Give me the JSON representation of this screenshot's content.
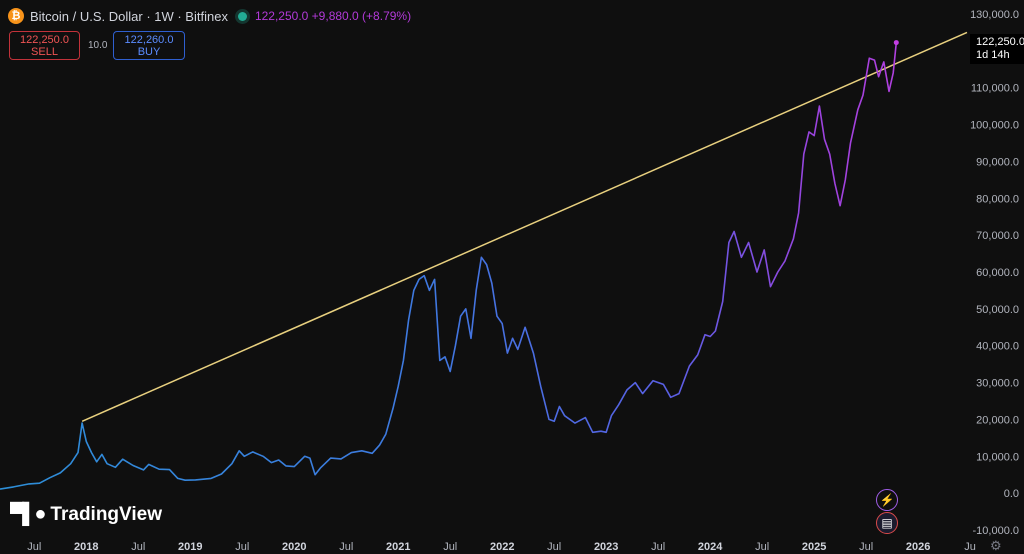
{
  "header": {
    "symbol_icon": "bitcoin-icon",
    "title": "Bitcoin / U.S. Dollar · 1W · Bitfinex",
    "price_readout": "122,250.0 +9,880.0 (+8.79%)"
  },
  "trade": {
    "sell_price": "122,250.0",
    "sell_label": "SELL",
    "spread": "10.0",
    "buy_price": "122,260.0",
    "buy_label": "BUY"
  },
  "branding": {
    "logo_text": "TradingView"
  },
  "price_label": {
    "value": "122,250.0",
    "countdown": "1d 14h"
  },
  "colors": {
    "background": "#0f0f0f",
    "trendline": "#e8d07f",
    "price_tag": "#b33ad9",
    "sell": "#c2323a",
    "buy": "#2f5fd0"
  },
  "chart_data": {
    "type": "line",
    "title": "Bitcoin / U.S. Dollar · 1W · Bitfinex",
    "ylim": [
      -10000,
      130000
    ],
    "y_ticks": [
      "130,000.0",
      "110,000.0",
      "100,000.0",
      "90,000.0",
      "80,000.0",
      "70,000.0",
      "60,000.0",
      "50,000.0",
      "40,000.0",
      "30,000.0",
      "20,000.0",
      "10,000.0",
      "0.0",
      "-10,000.0"
    ],
    "y_tick_values": [
      130000,
      110000,
      100000,
      90000,
      80000,
      70000,
      60000,
      50000,
      40000,
      30000,
      20000,
      10000,
      0,
      -10000
    ],
    "x_ticks": [
      "Jul",
      "2018",
      "Jul",
      "2019",
      "Jul",
      "2020",
      "Jul",
      "2021",
      "Jul",
      "2022",
      "Jul",
      "2023",
      "Jul",
      "2024",
      "Jul",
      "2025",
      "Jul",
      "2026",
      "Ju"
    ],
    "x_tick_years": [
      2017.5,
      2018,
      2018.5,
      2019,
      2019.5,
      2020,
      2020.5,
      2021,
      2021.5,
      2022,
      2022.5,
      2023,
      2023.5,
      2024,
      2024.5,
      2025,
      2025.5,
      2026,
      2026.5
    ],
    "xlim": [
      2017.17,
      2026.47
    ],
    "series": [
      {
        "values": [
          [
            2017.17,
            1100
          ],
          [
            2017.3,
            1700
          ],
          [
            2017.45,
            2500
          ],
          [
            2017.55,
            2700
          ],
          [
            2017.65,
            4200
          ],
          [
            2017.75,
            5500
          ],
          [
            2017.85,
            8000
          ],
          [
            2017.92,
            11000
          ],
          [
            2017.96,
            19000
          ],
          [
            2018.0,
            14000
          ],
          [
            2018.05,
            11000
          ],
          [
            2018.1,
            8500
          ],
          [
            2018.15,
            10500
          ],
          [
            2018.2,
            8000
          ],
          [
            2018.28,
            7000
          ],
          [
            2018.35,
            9200
          ],
          [
            2018.45,
            7500
          ],
          [
            2018.55,
            6300
          ],
          [
            2018.6,
            7800
          ],
          [
            2018.7,
            6500
          ],
          [
            2018.8,
            6400
          ],
          [
            2018.88,
            4000
          ],
          [
            2018.95,
            3500
          ],
          [
            2019.05,
            3600
          ],
          [
            2019.2,
            4000
          ],
          [
            2019.3,
            5200
          ],
          [
            2019.4,
            8000
          ],
          [
            2019.47,
            11500
          ],
          [
            2019.52,
            10000
          ],
          [
            2019.6,
            11200
          ],
          [
            2019.7,
            10000
          ],
          [
            2019.78,
            8300
          ],
          [
            2019.85,
            9000
          ],
          [
            2019.92,
            7400
          ],
          [
            2020.0,
            7200
          ],
          [
            2020.1,
            10000
          ],
          [
            2020.15,
            9500
          ],
          [
            2020.2,
            5000
          ],
          [
            2020.25,
            6800
          ],
          [
            2020.35,
            9500
          ],
          [
            2020.45,
            9300
          ],
          [
            2020.55,
            11000
          ],
          [
            2020.65,
            11500
          ],
          [
            2020.75,
            10800
          ],
          [
            2020.82,
            13000
          ],
          [
            2020.88,
            16000
          ],
          [
            2020.95,
            23000
          ],
          [
            2021.0,
            29000
          ],
          [
            2021.05,
            36000
          ],
          [
            2021.1,
            47000
          ],
          [
            2021.15,
            55000
          ],
          [
            2021.2,
            58000
          ],
          [
            2021.25,
            59000
          ],
          [
            2021.3,
            55000
          ],
          [
            2021.35,
            58000
          ],
          [
            2021.4,
            36000
          ],
          [
            2021.45,
            37000
          ],
          [
            2021.5,
            33000
          ],
          [
            2021.55,
            40000
          ],
          [
            2021.6,
            48000
          ],
          [
            2021.65,
            50000
          ],
          [
            2021.7,
            42000
          ],
          [
            2021.75,
            55000
          ],
          [
            2021.8,
            64000
          ],
          [
            2021.85,
            62000
          ],
          [
            2021.9,
            57000
          ],
          [
            2021.95,
            48000
          ],
          [
            2022.0,
            46000
          ],
          [
            2022.05,
            38000
          ],
          [
            2022.1,
            42000
          ],
          [
            2022.15,
            39000
          ],
          [
            2022.22,
            45000
          ],
          [
            2022.3,
            38000
          ],
          [
            2022.37,
            29000
          ],
          [
            2022.45,
            20000
          ],
          [
            2022.5,
            19500
          ],
          [
            2022.55,
            23500
          ],
          [
            2022.6,
            21000
          ],
          [
            2022.7,
            19000
          ],
          [
            2022.8,
            20500
          ],
          [
            2022.87,
            16500
          ],
          [
            2022.95,
            16800
          ],
          [
            2023.0,
            16500
          ],
          [
            2023.05,
            21000
          ],
          [
            2023.12,
            24000
          ],
          [
            2023.2,
            28000
          ],
          [
            2023.28,
            30000
          ],
          [
            2023.35,
            27000
          ],
          [
            2023.45,
            30500
          ],
          [
            2023.55,
            29500
          ],
          [
            2023.62,
            26000
          ],
          [
            2023.7,
            27000
          ],
          [
            2023.8,
            34500
          ],
          [
            2023.88,
            37500
          ],
          [
            2023.95,
            43000
          ],
          [
            2024.0,
            42500
          ],
          [
            2024.05,
            44000
          ],
          [
            2024.12,
            52000
          ],
          [
            2024.18,
            68000
          ],
          [
            2024.23,
            71000
          ],
          [
            2024.3,
            64000
          ],
          [
            2024.37,
            68000
          ],
          [
            2024.45,
            60000
          ],
          [
            2024.52,
            66000
          ],
          [
            2024.58,
            56000
          ],
          [
            2024.65,
            60000
          ],
          [
            2024.72,
            63000
          ],
          [
            2024.8,
            69000
          ],
          [
            2024.85,
            76000
          ],
          [
            2024.9,
            92000
          ],
          [
            2024.95,
            98000
          ],
          [
            2025.0,
            97000
          ],
          [
            2025.05,
            105000
          ],
          [
            2025.1,
            96000
          ],
          [
            2025.15,
            92000
          ],
          [
            2025.2,
            84000
          ],
          [
            2025.25,
            78000
          ],
          [
            2025.3,
            85000
          ],
          [
            2025.35,
            95000
          ],
          [
            2025.42,
            104000
          ],
          [
            2025.47,
            108000
          ],
          [
            2025.53,
            118000
          ],
          [
            2025.58,
            117500
          ],
          [
            2025.62,
            113000
          ],
          [
            2025.67,
            117000
          ],
          [
            2025.72,
            109000
          ],
          [
            2025.76,
            114000
          ],
          [
            2025.79,
            122250
          ]
        ]
      }
    ],
    "trendline": [
      [
        2017.96,
        19500
      ],
      [
        2026.47,
        125000
      ]
    ]
  }
}
